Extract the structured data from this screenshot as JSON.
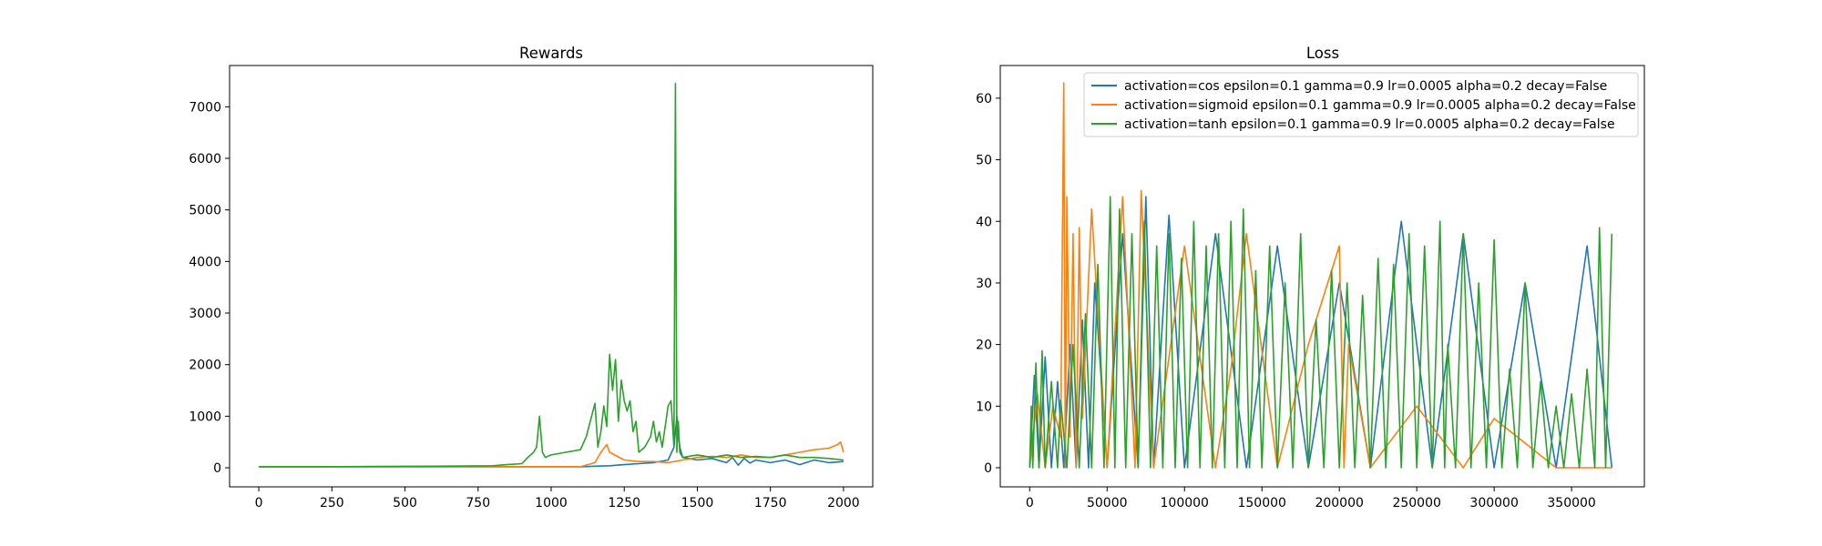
{
  "chart_data": [
    {
      "type": "line",
      "title": "Rewards",
      "xlabel": "",
      "ylabel": "",
      "xlim": [
        -100,
        2100
      ],
      "ylim": [
        -370,
        7800
      ],
      "xticks": [
        0,
        250,
        500,
        750,
        1000,
        1250,
        1500,
        1750,
        2000
      ],
      "yticks": [
        0,
        1000,
        2000,
        3000,
        4000,
        5000,
        6000,
        7000
      ],
      "grid": false,
      "series": [
        {
          "color": "#1f77b4",
          "x": [
            0,
            200,
            400,
            600,
            800,
            900,
            1000,
            1100,
            1150,
            1200,
            1250,
            1300,
            1350,
            1400,
            1420,
            1430,
            1440,
            1450,
            1500,
            1550,
            1600,
            1620,
            1640,
            1660,
            1680,
            1700,
            1750,
            1800,
            1850,
            1900,
            1950,
            2000
          ],
          "y": [
            20,
            20,
            20,
            20,
            20,
            20,
            20,
            20,
            30,
            40,
            60,
            80,
            100,
            150,
            400,
            1000,
            400,
            200,
            150,
            180,
            100,
            200,
            50,
            180,
            90,
            150,
            100,
            150,
            60,
            150,
            100,
            120
          ]
        },
        {
          "color": "#ff7f0e",
          "x": [
            0,
            200,
            400,
            600,
            800,
            1000,
            1100,
            1150,
            1170,
            1190,
            1200,
            1250,
            1300,
            1350,
            1400,
            1450,
            1500,
            1550,
            1600,
            1650,
            1700,
            1750,
            1800,
            1850,
            1900,
            1950,
            1980,
            1990,
            2000
          ],
          "y": [
            20,
            20,
            20,
            20,
            20,
            20,
            20,
            100,
            300,
            450,
            300,
            150,
            120,
            120,
            100,
            150,
            200,
            220,
            200,
            250,
            200,
            200,
            250,
            300,
            350,
            380,
            450,
            500,
            300
          ]
        },
        {
          "color": "#2ca02c",
          "x": [
            0,
            200,
            400,
            600,
            800,
            850,
            900,
            920,
            940,
            950,
            960,
            970,
            980,
            1000,
            1050,
            1100,
            1120,
            1150,
            1160,
            1170,
            1180,
            1190,
            1200,
            1210,
            1220,
            1230,
            1240,
            1250,
            1260,
            1270,
            1280,
            1290,
            1300,
            1320,
            1340,
            1350,
            1360,
            1370,
            1380,
            1400,
            1410,
            1420,
            1425,
            1430,
            1435,
            1440,
            1450,
            1500,
            1550,
            1600,
            1650,
            1700,
            1750,
            1800,
            1850,
            1900,
            1950,
            2000
          ],
          "y": [
            20,
            20,
            25,
            30,
            40,
            60,
            80,
            200,
            300,
            400,
            1000,
            300,
            200,
            250,
            300,
            350,
            600,
            1250,
            400,
            700,
            1200,
            800,
            2200,
            1500,
            2100,
            900,
            1700,
            1300,
            1100,
            1300,
            700,
            900,
            300,
            400,
            600,
            900,
            500,
            700,
            400,
            1200,
            1300,
            400,
            7450,
            300,
            900,
            300,
            200,
            250,
            200,
            250,
            200,
            220,
            200,
            250,
            200,
            200,
            180,
            150
          ]
        }
      ]
    },
    {
      "type": "line",
      "title": "Loss",
      "xlabel": "",
      "ylabel": "",
      "xlim": [
        -19000,
        397000
      ],
      "ylim": [
        -3.1,
        65.3
      ],
      "xticks": [
        0,
        50000,
        100000,
        150000,
        200000,
        250000,
        300000,
        350000
      ],
      "yticks": [
        0,
        10,
        20,
        30,
        40,
        50,
        60
      ],
      "grid": false,
      "legend_position": "upper right",
      "series": [
        {
          "name": "activation=cos epsilon=0.1 gamma=0.9 lr=0.0005 alpha=0.2 decay=False",
          "color": "#1f77b4",
          "x": [
            0,
            3000,
            6000,
            10000,
            14000,
            18000,
            22000,
            26000,
            30000,
            34000,
            38000,
            42000,
            50000,
            60000,
            70000,
            75000,
            80000,
            90000,
            100000,
            120000,
            140000,
            160000,
            180000,
            200000,
            220000,
            240000,
            260000,
            280000,
            300000,
            320000,
            340000,
            360000,
            376000
          ],
          "y": [
            0,
            15,
            0,
            18,
            0,
            14,
            0,
            20,
            0,
            24,
            0,
            30,
            0,
            38,
            0,
            44,
            0,
            41,
            0,
            38,
            0,
            36,
            0,
            30,
            0,
            40,
            0,
            38,
            0,
            30,
            0,
            36,
            0
          ]
        },
        {
          "name": "activation=sigmoid epsilon=0.1 gamma=0.9 lr=0.0005 alpha=0.2 decay=False",
          "color": "#ff7f0e",
          "x": [
            0,
            5000,
            10000,
            15000,
            20000,
            22000,
            23000,
            24000,
            26000,
            28000,
            30000,
            32000,
            34000,
            40000,
            50000,
            60000,
            68000,
            72000,
            80000,
            100000,
            120000,
            130000,
            140000,
            160000,
            180000,
            200000,
            203000,
            206000,
            220000,
            250000,
            280000,
            300000,
            340000,
            376000
          ],
          "y": [
            0,
            12,
            0,
            10,
            5,
            62.5,
            0,
            44,
            5,
            38,
            0,
            39,
            8,
            42,
            0,
            44,
            0,
            45,
            0,
            36,
            0,
            16,
            38,
            0,
            20,
            36,
            0,
            20,
            0,
            10,
            0,
            8,
            0,
            0
          ]
        },
        {
          "name": "activation=tanh epsilon=0.1 gamma=0.9 lr=0.0005 alpha=0.2 decay=False",
          "color": "#2ca02c",
          "x": [
            0,
            1000,
            2000,
            4000,
            6000,
            8000,
            10000,
            14000,
            18000,
            20000,
            24000,
            28000,
            32000,
            36000,
            40000,
            44000,
            48000,
            52000,
            55000,
            58000,
            62000,
            66000,
            70000,
            74000,
            78000,
            82000,
            86000,
            90000,
            94000,
            98000,
            102000,
            106000,
            110000,
            114000,
            118000,
            122000,
            126000,
            130000,
            134000,
            138000,
            142000,
            146000,
            150000,
            155000,
            160000,
            165000,
            170000,
            175000,
            180000,
            185000,
            190000,
            195000,
            200000,
            205000,
            210000,
            215000,
            220000,
            225000,
            230000,
            235000,
            240000,
            245000,
            250000,
            255000,
            260000,
            265000,
            268000,
            270000,
            275000,
            280000,
            285000,
            290000,
            295000,
            300000,
            305000,
            310000,
            315000,
            320000,
            325000,
            330000,
            335000,
            340000,
            345000,
            350000,
            355000,
            360000,
            365000,
            368000,
            372000,
            376000
          ],
          "y": [
            0,
            10,
            0,
            17,
            0,
            19,
            0,
            14,
            0,
            11,
            0,
            20,
            0,
            25,
            0,
            33,
            0,
            44,
            0,
            42,
            0,
            38,
            0,
            40,
            0,
            36,
            0,
            38,
            0,
            34,
            0,
            40,
            0,
            36,
            0,
            38,
            0,
            40,
            0,
            42,
            0,
            32,
            0,
            36,
            0,
            30,
            0,
            38,
            0,
            24,
            0,
            32,
            0,
            30,
            0,
            28,
            0,
            34,
            0,
            33,
            0,
            38,
            0,
            36,
            0,
            40,
            0,
            20,
            0,
            38,
            0,
            30,
            0,
            37,
            0,
            16,
            0,
            30,
            0,
            14,
            0,
            10,
            0,
            12,
            0,
            16,
            0,
            39,
            0,
            38
          ]
        }
      ]
    }
  ]
}
